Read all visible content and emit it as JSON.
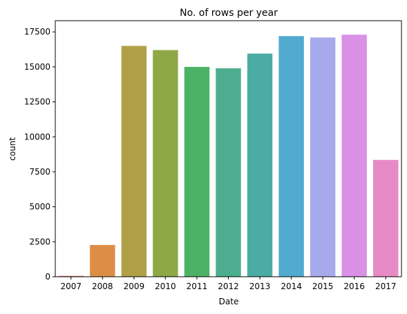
{
  "chart_data": {
    "type": "bar",
    "title": "No. of rows per year",
    "xlabel": "Date",
    "ylabel": "count",
    "categories": [
      "2007",
      "2008",
      "2009",
      "2010",
      "2011",
      "2012",
      "2013",
      "2014",
      "2015",
      "2016",
      "2017"
    ],
    "values": [
      61,
      2270,
      16500,
      16200,
      15000,
      14900,
      15950,
      17200,
      17100,
      17300,
      8350
    ],
    "colors": [
      "#e8707b",
      "#dc8e47",
      "#b2a048",
      "#8fa846",
      "#4cb266",
      "#4cae8f",
      "#4daba5",
      "#52aad0",
      "#a6aaea",
      "#d991e6",
      "#e78ac5"
    ],
    "ylim": [
      0,
      18300
    ],
    "yticks": [
      0,
      2500,
      5000,
      7500,
      10000,
      12500,
      15000,
      17500
    ],
    "ytick_labels": [
      "0",
      "2500",
      "5000",
      "7500",
      "10000",
      "12500",
      "15000",
      "17500"
    ],
    "grid": false,
    "legend": "none"
  }
}
